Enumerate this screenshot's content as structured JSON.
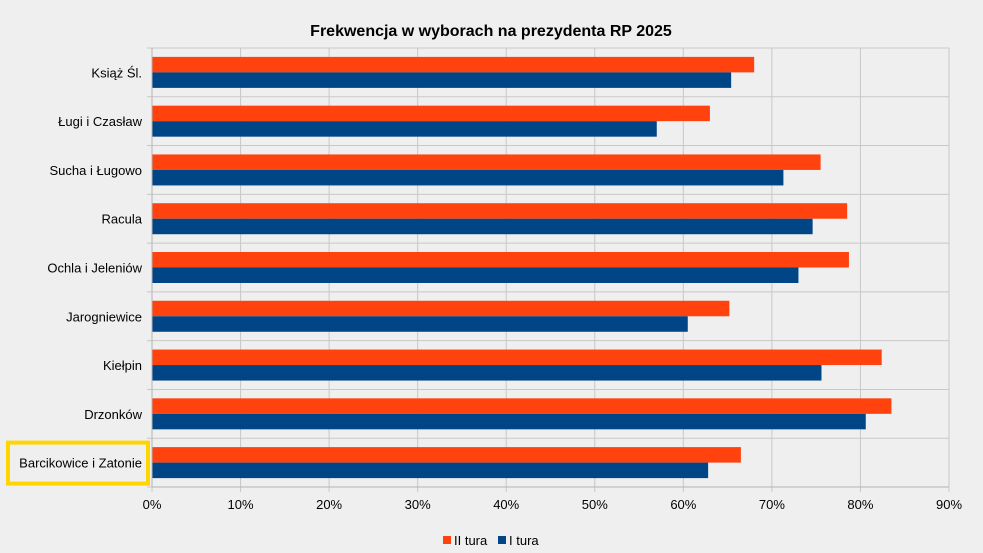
{
  "chart_data": {
    "type": "bar",
    "orientation": "horizontal",
    "title": "Frekwencja w wyborach na prezydenta RP 2025",
    "categories": [
      "Książ Śl.",
      "Ługi i Czasław",
      "Sucha i Ługowo",
      "Racula",
      "Ochla i Jeleniów",
      "Jarogniewice",
      "Kiełpin",
      "Drzonków",
      "Barcikowice i Zatonie"
    ],
    "series": [
      {
        "name": "II tura",
        "color": "#ff420e",
        "values": [
          68.0,
          63.0,
          75.5,
          78.5,
          78.7,
          65.2,
          82.4,
          83.5,
          66.5
        ]
      },
      {
        "name": "I tura",
        "color": "#004586",
        "values": [
          65.4,
          57.0,
          71.3,
          74.6,
          73.0,
          60.5,
          75.6,
          80.6,
          62.8
        ]
      }
    ],
    "xlim": [
      0,
      90
    ],
    "xticks": [
      0,
      10,
      20,
      30,
      40,
      50,
      60,
      70,
      80,
      90
    ],
    "tick_labels": [
      "0%",
      "10%",
      "20%",
      "30%",
      "40%",
      "50%",
      "60%",
      "70%",
      "80%",
      "90%"
    ],
    "grid": true,
    "legend_position": "bottom",
    "highlighted_category": "Barcikowice i Zatonie",
    "highlight_color": "#ffd500"
  }
}
